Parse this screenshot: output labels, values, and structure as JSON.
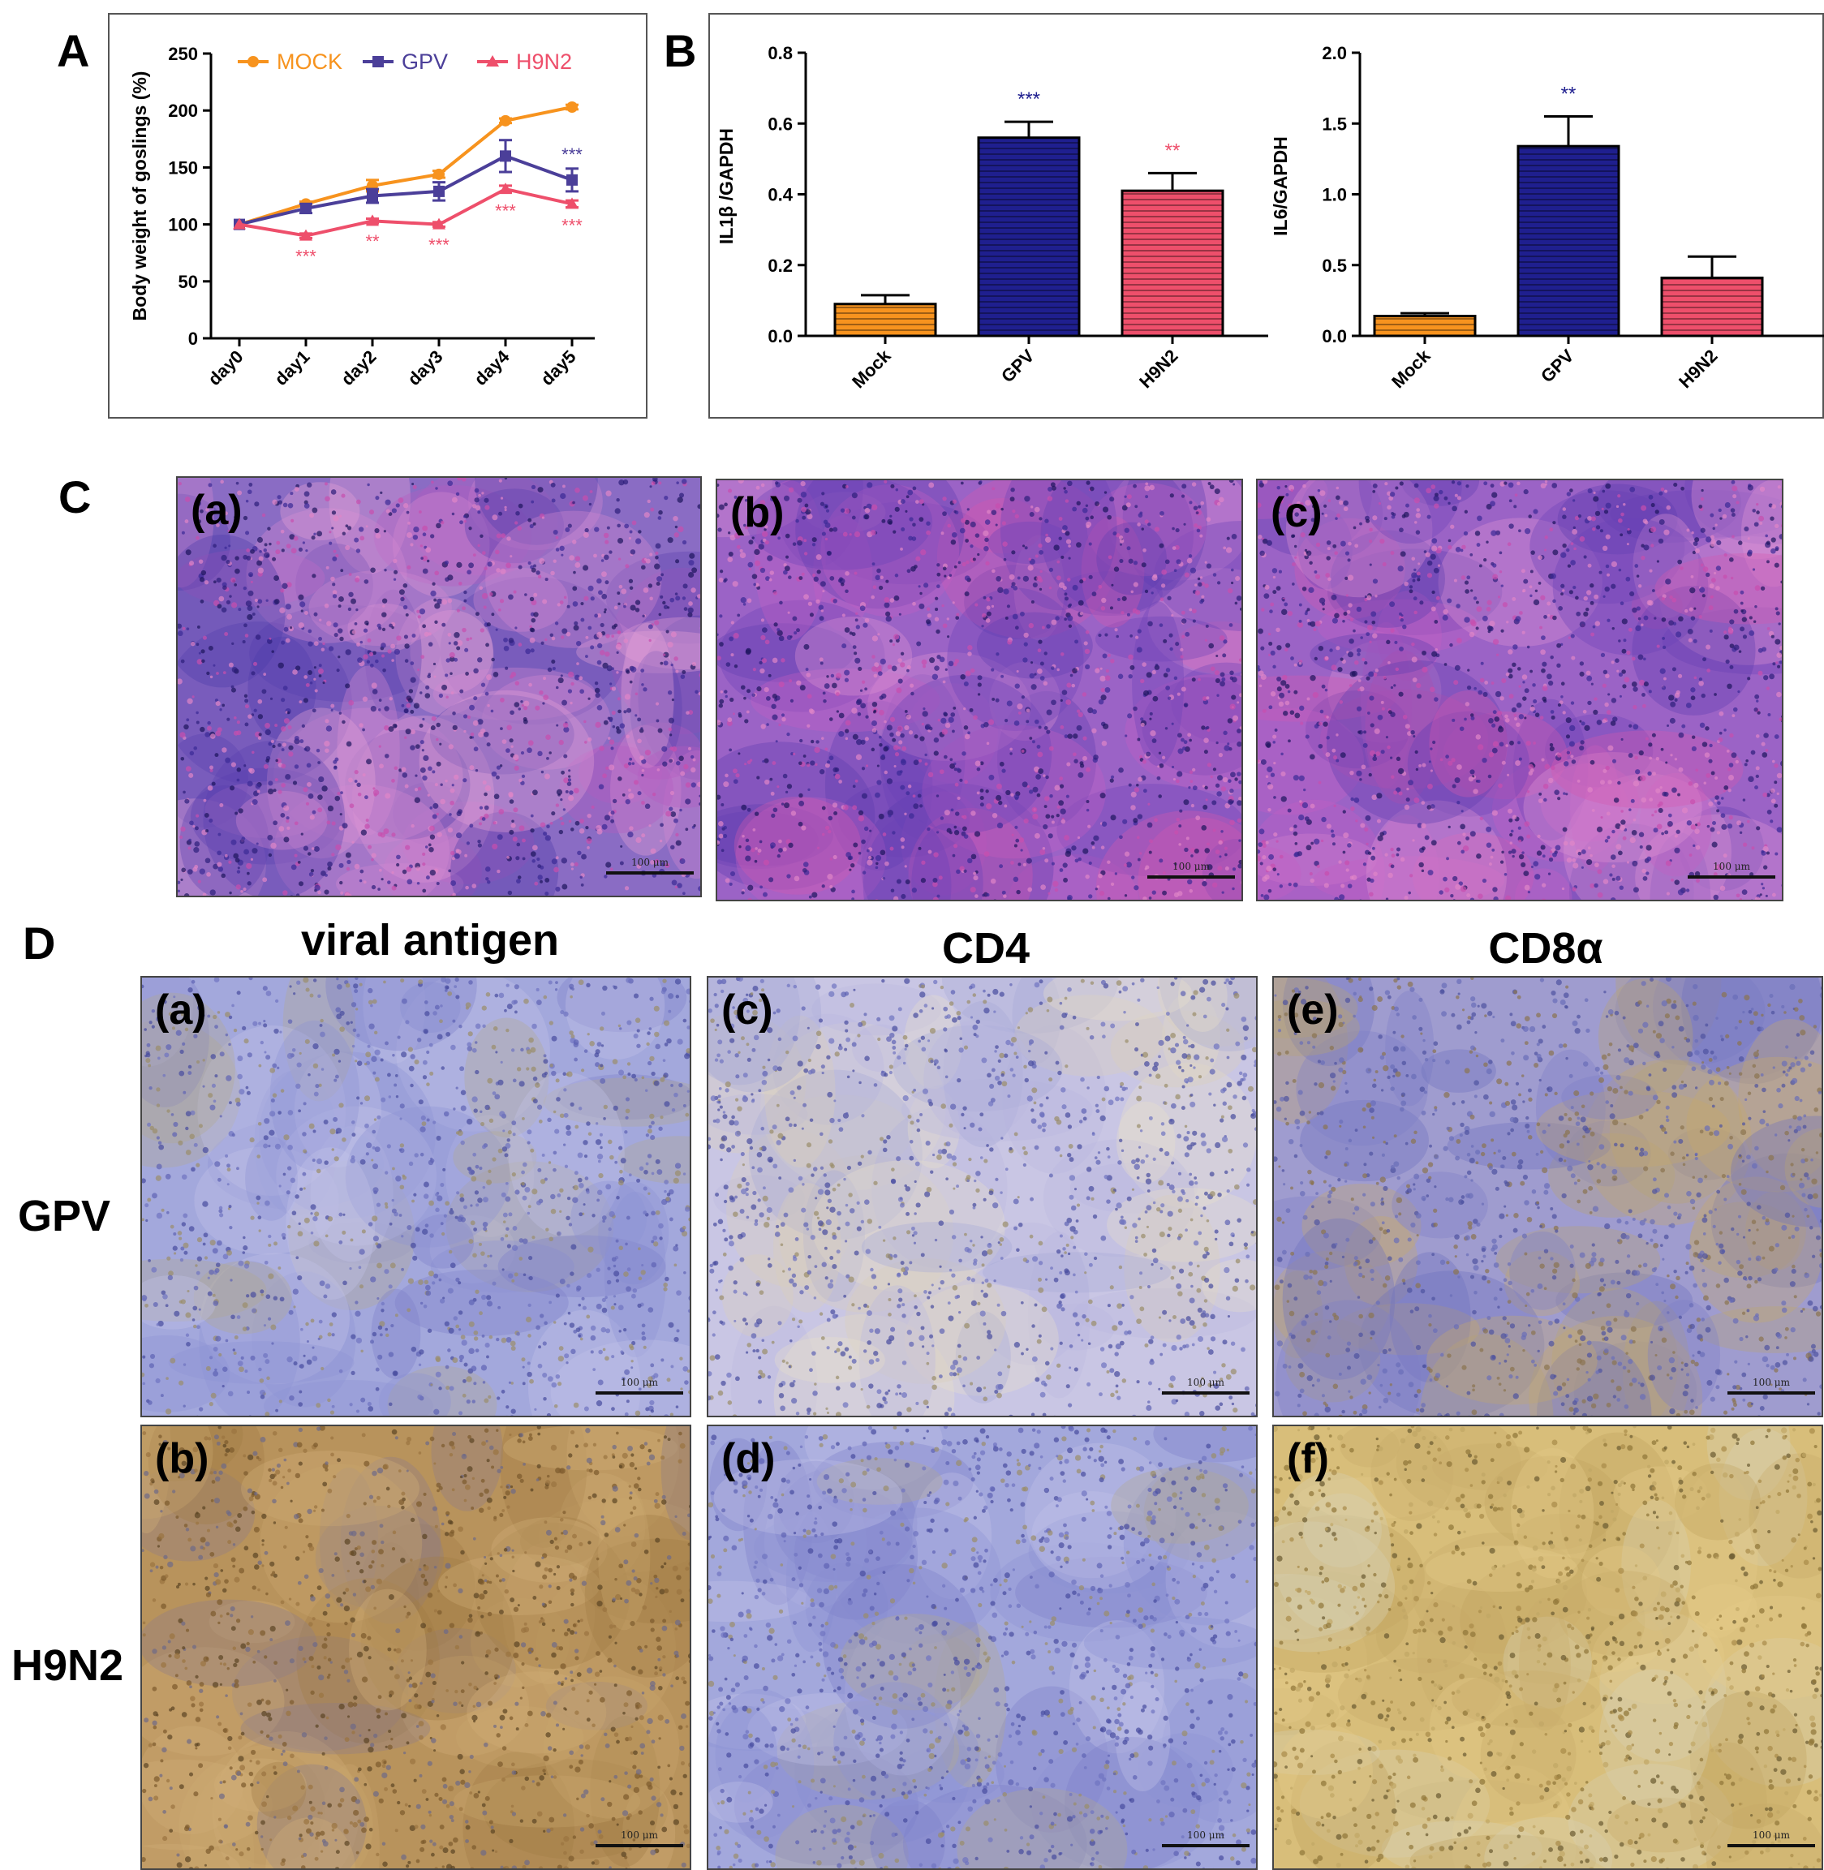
{
  "panels": {
    "A": "A",
    "B": "B",
    "C": "C",
    "D": "D"
  },
  "chart_data": [
    {
      "type": "line",
      "ylabel": "Body weight of goslings (%)",
      "xlabel": "",
      "categories": [
        "day0",
        "day1",
        "day2",
        "day3",
        "day4",
        "day5"
      ],
      "ylim": [
        0,
        250
      ],
      "yticks": [
        "0",
        "50",
        "100",
        "150",
        "200",
        "250"
      ],
      "series": [
        {
          "name": "MOCK",
          "color": "#F7931E",
          "marker": "circle",
          "values": [
            100,
            118,
            134,
            144,
            191,
            203
          ],
          "errors": [
            0,
            2,
            5,
            3,
            2,
            2
          ],
          "stars": [
            "",
            "",
            "",
            "",
            "",
            ""
          ]
        },
        {
          "name": "GPV",
          "color": "#4B3F99",
          "marker": "square",
          "values": [
            100,
            114,
            125,
            129,
            160,
            139
          ],
          "errors": [
            0,
            4,
            6,
            8,
            14,
            10
          ],
          "stars": [
            "",
            "",
            "",
            "",
            "",
            "***"
          ]
        },
        {
          "name": "H9N2",
          "color": "#EE4F6B",
          "marker": "triangle",
          "values": [
            100,
            90,
            103,
            100,
            131,
            118
          ],
          "errors": [
            0,
            2,
            2,
            2,
            3,
            3
          ],
          "stars": [
            "",
            "***",
            "**",
            "***",
            "***",
            "***"
          ]
        }
      ]
    },
    {
      "type": "bar",
      "ylabel": "IL1β /GAPDH",
      "categories": [
        "Mock",
        "GPV",
        "H9N2"
      ],
      "values": [
        0.09,
        0.56,
        0.41
      ],
      "errors": [
        0.025,
        0.045,
        0.05
      ],
      "ylim": [
        0,
        0.8
      ],
      "yticks": [
        "0.0",
        "0.2",
        "0.4",
        "0.6",
        "0.8"
      ],
      "colors": [
        "#F7931E",
        "#1F1F8F",
        "#EE4F6B"
      ],
      "stars": [
        "",
        "***",
        "**"
      ],
      "star_colors": [
        "",
        "#1F1F8F",
        "#EE4F6B"
      ]
    },
    {
      "type": "bar",
      "ylabel": "IL6/GAPDH",
      "categories": [
        "Mock",
        "GPV",
        "H9N2"
      ],
      "values": [
        0.14,
        1.34,
        0.41
      ],
      "errors": [
        0.02,
        0.21,
        0.15
      ],
      "ylim": [
        0,
        2.0
      ],
      "yticks": [
        "0.0",
        "0.5",
        "1.0",
        "1.5",
        "2.0"
      ],
      "colors": [
        "#F7931E",
        "#1F1F8F",
        "#EE4F6B"
      ],
      "stars": [
        "",
        "**",
        ""
      ],
      "star_colors": [
        "",
        "#1F1F8F",
        ""
      ]
    }
  ],
  "histology_C": {
    "labels": [
      "(a)",
      "(b)",
      "(c)"
    ],
    "scale_text": "100 μm"
  },
  "ihc_D": {
    "columns": [
      "viral antigen",
      "CD4",
      "CD8α"
    ],
    "rows": [
      "GPV",
      "H9N2"
    ],
    "labels": [
      [
        "(a)",
        "(c)",
        "(e)"
      ],
      [
        "(b)",
        "(d)",
        "(f)"
      ]
    ],
    "scale_text": "100 μm"
  }
}
